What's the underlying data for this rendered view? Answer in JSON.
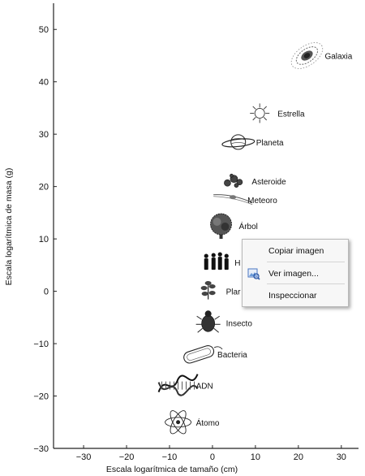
{
  "chart_data": {
    "type": "scatter",
    "title": "",
    "xlabel": "Escala logarítmica de tamaño (cm)",
    "ylabel": "Escala logarítmica de masa (g)",
    "xlim": [
      -37,
      34
    ],
    "ylim": [
      -30,
      55
    ],
    "x_ticks": [
      -30,
      -20,
      -10,
      0,
      10,
      20,
      30
    ],
    "y_ticks": [
      50,
      40,
      30,
      20,
      10,
      0,
      -10,
      -20,
      -30
    ],
    "x_tick_labels": [
      "−30",
      "−20",
      "−10",
      "0",
      "10",
      "20",
      "30"
    ],
    "y_tick_labels": [
      "50",
      "40",
      "30",
      "20",
      "10",
      "0",
      "−10",
      "−20",
      "−30"
    ],
    "grid": false,
    "points": [
      {
        "label": "Galaxia",
        "x": 22,
        "y": 45,
        "icon": "galaxy-icon"
      },
      {
        "label": "Estrella",
        "x": 11,
        "y": 34,
        "icon": "star-icon"
      },
      {
        "label": "Planeta",
        "x": 6,
        "y": 28.5,
        "icon": "planet-icon"
      },
      {
        "label": "Asteroide",
        "x": 5,
        "y": 21,
        "icon": "asteroid-icon"
      },
      {
        "label": "Meteoro",
        "x": 4,
        "y": 17.5,
        "icon": "meteor-icon"
      },
      {
        "label": "Árbol",
        "x": 2,
        "y": 12.5,
        "icon": "tree-icon"
      },
      {
        "label": "H",
        "x": 1,
        "y": 5.5,
        "icon": "humans-icon"
      },
      {
        "label": "Plar",
        "x": -1,
        "y": 0,
        "icon": "plant-icon"
      },
      {
        "label": "Insecto",
        "x": -1,
        "y": -6,
        "icon": "insect-icon"
      },
      {
        "label": "Bacteria",
        "x": -3,
        "y": -12,
        "icon": "bacteria-icon"
      },
      {
        "label": "ADN",
        "x": -8,
        "y": -18,
        "icon": "dna-icon"
      },
      {
        "label": "Átomo",
        "x": -8,
        "y": -25,
        "icon": "atom-icon"
      }
    ]
  },
  "context_menu": {
    "items": [
      {
        "label": "Copiar imagen"
      },
      {
        "label": "Ver imagen...",
        "icon": "view-image-icon"
      },
      {
        "label": "Inspeccionar"
      }
    ]
  }
}
